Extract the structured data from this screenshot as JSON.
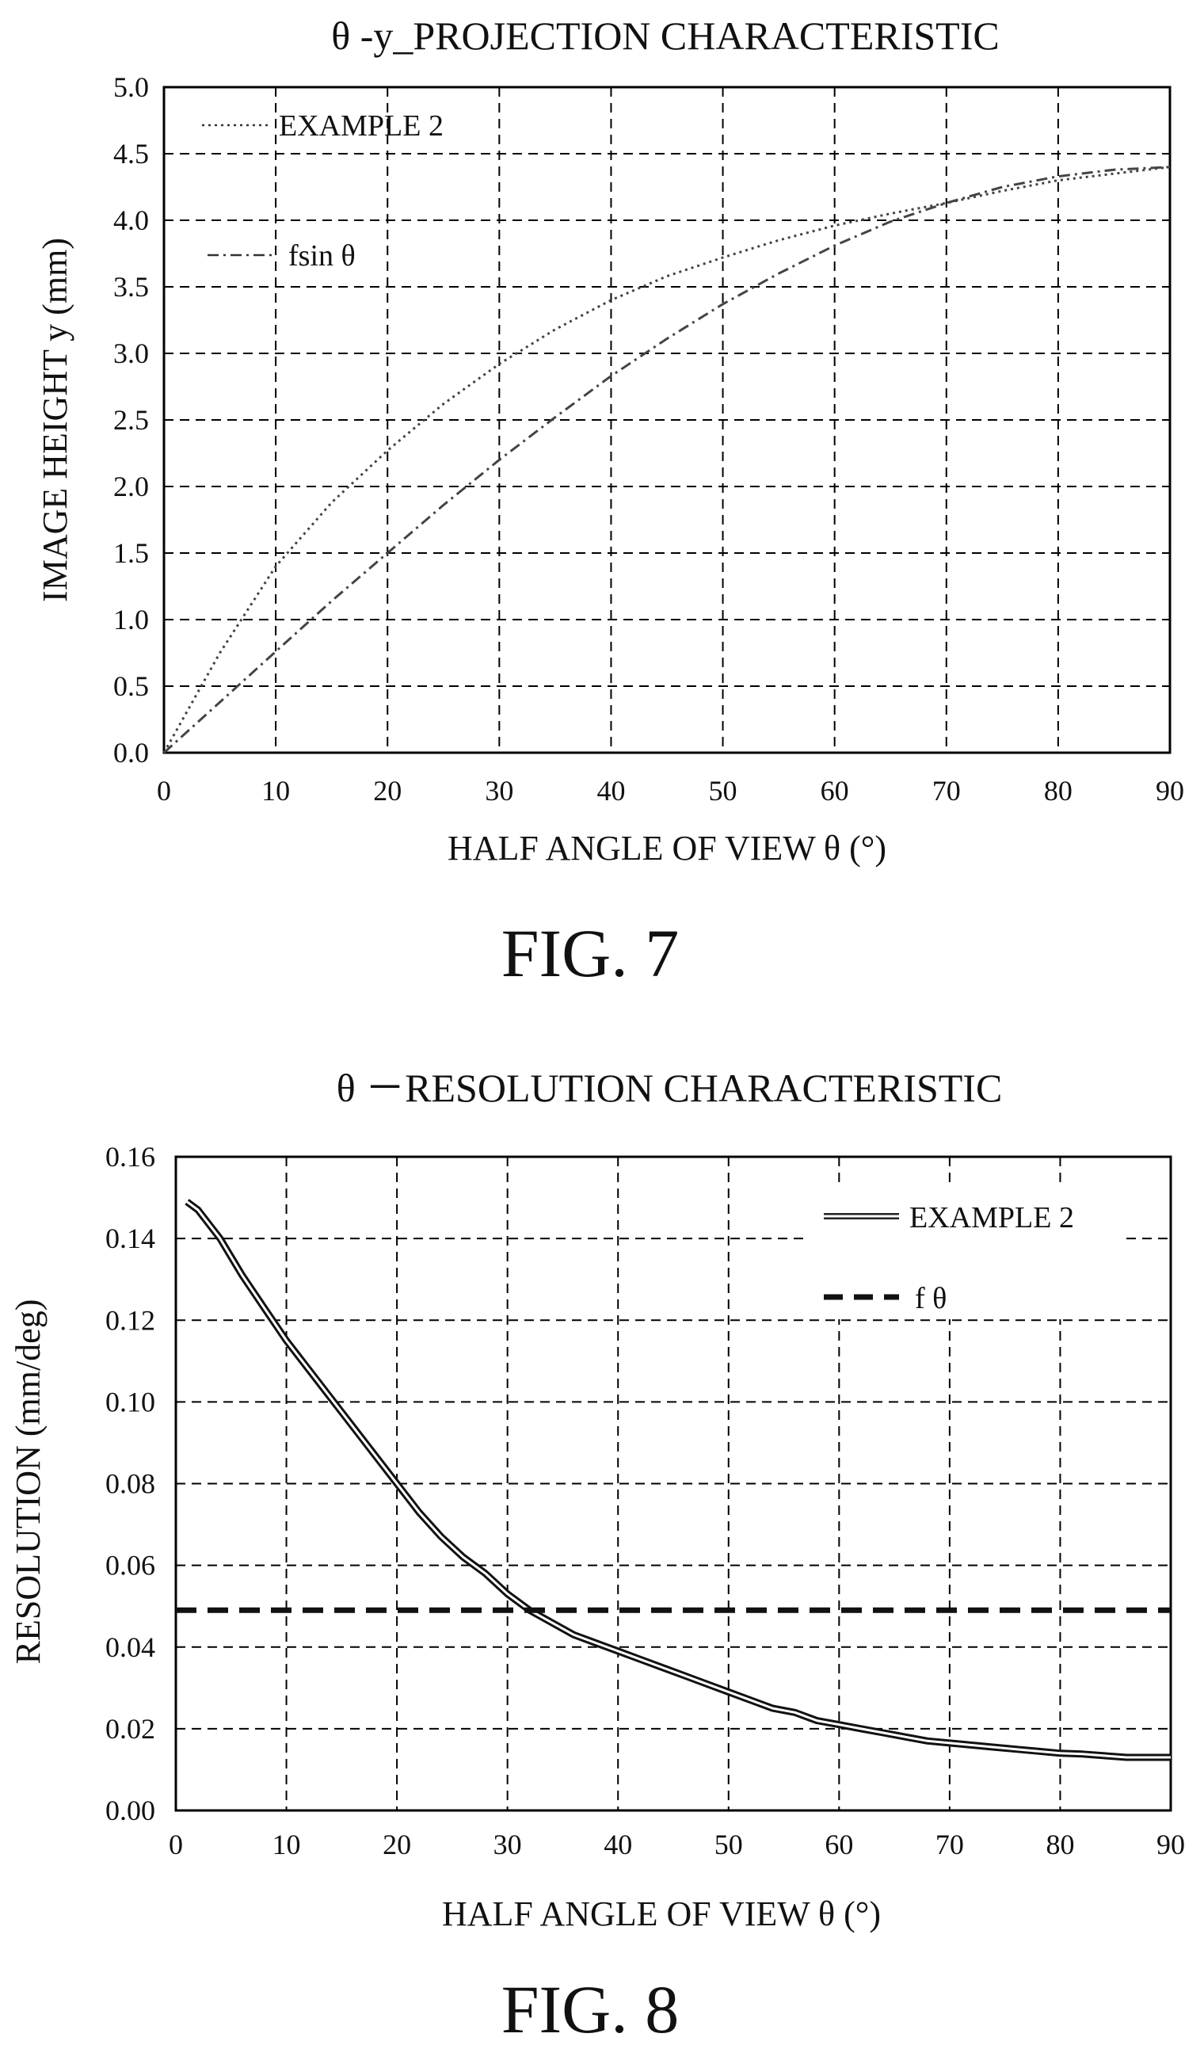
{
  "figures": [
    {
      "label": "FIG. 7",
      "chart_data": {
        "type": "line",
        "title": "θ -y_PROJECTION CHARACTERISTIC",
        "xlabel": "HALF ANGLE OF VIEW  θ (°)",
        "ylabel": "IMAGE HEIGHT y (mm)",
        "xlim": [
          0,
          90
        ],
        "ylim": [
          0,
          5
        ],
        "xticks": [
          "0",
          "10",
          "20",
          "30",
          "40",
          "50",
          "60",
          "70",
          "80",
          "90"
        ],
        "yticks": [
          "0.0",
          "0.5",
          "1.0",
          "1.5",
          "2.0",
          "2.5",
          "3.0",
          "3.5",
          "4.0",
          "4.5",
          "5.0"
        ],
        "grid": true,
        "legend_position": "top-left",
        "series": [
          {
            "name": "EXAMPLE 2",
            "style": "dotted",
            "x": [
              0,
              5,
              10,
              15,
              20,
              25,
              30,
              35,
              40,
              45,
              50,
              55,
              60,
              65,
              70,
              75,
              80,
              85,
              90
            ],
            "y": [
              0,
              0.75,
              1.4,
              1.88,
              2.27,
              2.62,
              2.92,
              3.18,
              3.4,
              3.58,
              3.72,
              3.85,
              3.96,
              4.05,
              4.13,
              4.22,
              4.3,
              4.35,
              4.4
            ]
          },
          {
            "name": "fsin θ",
            "style": "dash-dot",
            "x": [
              0,
              5,
              10,
              15,
              20,
              25,
              30,
              35,
              40,
              45,
              50,
              55,
              60,
              65,
              70,
              75,
              80,
              85,
              90
            ],
            "y": [
              0,
              0.38,
              0.76,
              1.14,
              1.5,
              1.86,
              2.2,
              2.52,
              2.83,
              3.11,
              3.37,
              3.6,
              3.81,
              3.99,
              4.13,
              4.25,
              4.33,
              4.38,
              4.4
            ]
          }
        ]
      }
    },
    {
      "label": "FIG. 8",
      "chart_data": {
        "type": "line",
        "title": "θ －RESOLUTION CHARACTERISTIC",
        "xlabel": "HALF ANGLE OF VIEW  θ (°)",
        "ylabel": "RESOLUTION (mm/deg)",
        "xlim": [
          0,
          90
        ],
        "ylim": [
          0,
          0.16
        ],
        "xticks": [
          "0",
          "10",
          "20",
          "30",
          "40",
          "50",
          "60",
          "70",
          "80",
          "90"
        ],
        "yticks": [
          "0.00",
          "0.02",
          "0.04",
          "0.06",
          "0.08",
          "0.10",
          "0.12",
          "0.14",
          "0.16"
        ],
        "grid": true,
        "legend_position": "top-right",
        "series": [
          {
            "name": "EXAMPLE 2",
            "style": "double-line",
            "x": [
              1,
              2,
              4,
              6,
              8,
              10,
              12,
              14,
              16,
              18,
              20,
              22,
              24,
              26,
              28,
              30,
              32,
              34,
              36,
              38,
              40,
              42,
              44,
              46,
              48,
              50,
              52,
              54,
              56,
              58,
              60,
              62,
              64,
              66,
              68,
              70,
              72,
              74,
              76,
              78,
              80,
              82,
              84,
              86,
              88,
              90
            ],
            "y": [
              0.149,
              0.147,
              0.14,
              0.131,
              0.123,
              0.115,
              0.108,
              0.101,
              0.094,
              0.087,
              0.08,
              0.073,
              0.067,
              0.062,
              0.058,
              0.053,
              0.049,
              0.046,
              0.043,
              0.041,
              0.039,
              0.037,
              0.035,
              0.033,
              0.031,
              0.029,
              0.027,
              0.025,
              0.024,
              0.022,
              0.021,
              0.02,
              0.019,
              0.018,
              0.017,
              0.0165,
              0.016,
              0.0155,
              0.015,
              0.0145,
              0.014,
              0.0138,
              0.0134,
              0.013,
              0.013,
              0.013
            ]
          },
          {
            "name": "f θ",
            "style": "dashed",
            "x": [
              0,
              90
            ],
            "y": [
              0.049,
              0.049
            ]
          }
        ]
      }
    }
  ]
}
